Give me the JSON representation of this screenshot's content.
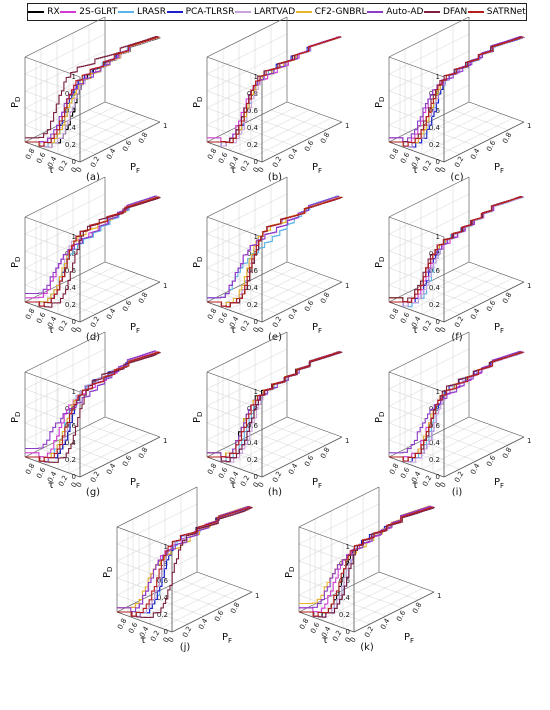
{
  "chart_data": {
    "type": "line",
    "legend": {
      "placement": "top",
      "entries": [
        {
          "name": "RX",
          "color": "#000000"
        },
        {
          "name": "2S-GLRT",
          "color": "#d23cd2"
        },
        {
          "name": "LRASR",
          "color": "#5ab4e6"
        },
        {
          "name": "PCA-TLRSR",
          "color": "#1e1ec8"
        },
        {
          "name": "LARTVAD",
          "color": "#c8a0dc"
        },
        {
          "name": "CF2-GNBRL",
          "color": "#e6b428"
        },
        {
          "name": "Auto-AD",
          "color": "#8c3cc8"
        },
        {
          "name": "DFAN",
          "color": "#7a1e3c"
        },
        {
          "name": "SATRNet",
          "color": "#b41e1e"
        }
      ]
    },
    "axes": {
      "z_label": "P",
      "z_sub": "D",
      "x_label": "P",
      "x_sub": "F",
      "y_label": "τ",
      "z_ticks": [
        "0",
        "0.2",
        "0.4",
        "0.6",
        "0.8",
        "1"
      ],
      "x_ticks": [
        "0",
        "0.2",
        "0.4",
        "0.6",
        "0.8",
        "1"
      ],
      "y_ticks": [
        "0.8",
        "0.6",
        "0.4",
        "0.2",
        "0"
      ],
      "range": [
        0,
        1
      ],
      "grid": true
    },
    "panels": [
      {
        "label": "(a)",
        "knee": [
          0.55,
          0.35,
          0.45,
          0.4,
          0.5,
          0.42,
          0.3,
          0.25,
          0.38
        ],
        "plateau": [
          0.6,
          0.55,
          0.62,
          0.58,
          0.5,
          0.5,
          0.45,
          0.8,
          0.6
        ]
      },
      {
        "label": "(b)",
        "knee": [
          0.35,
          0.3,
          0.4,
          0.4,
          0.42,
          0.38,
          0.33,
          0.36,
          0.37
        ],
        "plateau": [
          0.6,
          0.55,
          0.65,
          0.7,
          0.6,
          0.62,
          0.58,
          0.68,
          0.66
        ]
      },
      {
        "label": "(c)",
        "knee": [
          0.45,
          0.3,
          0.5,
          0.5,
          0.45,
          0.42,
          0.25,
          0.38,
          0.4
        ],
        "plateau": [
          0.6,
          0.55,
          0.62,
          0.6,
          0.58,
          0.6,
          0.5,
          0.62,
          0.6
        ]
      },
      {
        "label": "(d)",
        "knee": [
          0.4,
          0.2,
          0.3,
          0.38,
          0.35,
          0.35,
          0.15,
          0.55,
          0.4
        ],
        "plateau": [
          0.72,
          0.5,
          0.45,
          0.72,
          0.7,
          0.65,
          0.45,
          0.8,
          0.72
        ]
      },
      {
        "label": "(e)",
        "knee": [
          0.5,
          0.2,
          0.15,
          0.45,
          0.45,
          0.42,
          0.2,
          0.5,
          0.48
        ],
        "plateau": [
          0.8,
          0.55,
          0.35,
          0.78,
          0.78,
          0.75,
          0.55,
          0.8,
          0.8
        ]
      },
      {
        "label": "(f)",
        "knee": [
          0.3,
          0.35,
          0.45,
          0.4,
          0.42,
          0.3,
          0.3,
          0.28,
          0.32
        ],
        "plateau": [
          0.5,
          0.45,
          0.55,
          0.52,
          0.5,
          0.5,
          0.45,
          0.5,
          0.52
        ]
      },
      {
        "label": "(g)",
        "knee": [
          0.5,
          0.3,
          0.4,
          0.5,
          0.45,
          0.4,
          0.1,
          0.65,
          0.42
        ],
        "plateau": [
          0.7,
          0.55,
          0.65,
          0.72,
          0.68,
          0.6,
          0.35,
          0.8,
          0.6
        ]
      },
      {
        "label": "(h)",
        "knee": [
          0.3,
          0.35,
          0.4,
          0.45,
          0.5,
          0.3,
          0.3,
          0.45,
          0.35
        ],
        "plateau": [
          0.6,
          0.6,
          0.6,
          0.62,
          0.62,
          0.58,
          0.55,
          0.62,
          0.6
        ]
      },
      {
        "label": "(i)",
        "knee": [
          0.4,
          0.35,
          0.45,
          0.5,
          0.5,
          0.38,
          0.2,
          0.42,
          0.4
        ],
        "plateau": [
          0.62,
          0.55,
          0.65,
          0.7,
          0.66,
          0.6,
          0.45,
          0.7,
          0.6
        ]
      },
      {
        "label": "(j)",
        "knee": [
          0.45,
          0.25,
          0.5,
          0.5,
          0.45,
          0.2,
          0.25,
          0.7,
          0.4
        ],
        "plateau": [
          0.75,
          0.6,
          0.72,
          0.75,
          0.72,
          0.5,
          0.55,
          0.78,
          0.74
        ]
      },
      {
        "label": "(k)",
        "knee": [
          0.45,
          0.3,
          0.5,
          0.55,
          0.5,
          0.15,
          0.2,
          0.55,
          0.42
        ],
        "plateau": [
          0.65,
          0.55,
          0.66,
          0.7,
          0.66,
          0.45,
          0.5,
          0.68,
          0.64
        ]
      }
    ]
  }
}
